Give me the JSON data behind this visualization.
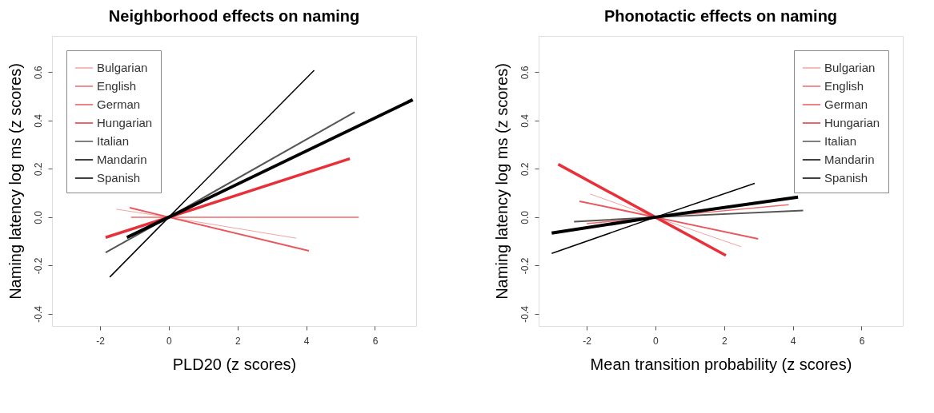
{
  "chart_data": [
    {
      "type": "line",
      "title": "Neighborhood effects on naming",
      "xlabel": "PLD20 (z scores)",
      "ylabel": "Naming latency log ms (z scores)",
      "xlim": [
        -3.4,
        7.2
      ],
      "ylim": [
        -0.45,
        0.75
      ],
      "xticks": [
        -2,
        0,
        2,
        4,
        6
      ],
      "yticks": [
        -0.4,
        -0.2,
        {
          "value": 0,
          "label": "0.0"
        },
        0.2,
        0.4,
        0.6
      ],
      "grid": false,
      "legend": "top left",
      "series": [
        {
          "name": "Bulgarian",
          "color": "#f5a3a3",
          "x": [
            -1.53,
            0,
            3.71
          ],
          "values": [
            0.033,
            0,
            -0.087
          ]
        },
        {
          "name": "English",
          "color": "#ee6a6a",
          "x": [
            -1.1,
            0,
            5.53
          ],
          "values": [
            0,
            0,
            0
          ]
        },
        {
          "name": "German",
          "color": "#e8585e",
          "x": [
            -1.14,
            0,
            4.08
          ],
          "values": [
            0.039,
            0,
            -0.139
          ]
        },
        {
          "name": "Hungarian",
          "color": "#e8303a",
          "x": [
            -1.84,
            0,
            5.27
          ],
          "values": [
            -0.084,
            0,
            0.242
          ]
        },
        {
          "name": "Italian",
          "color": "#555555",
          "x": [
            -1.84,
            0,
            5.41
          ],
          "values": [
            -0.146,
            0,
            0.435
          ]
        },
        {
          "name": "Mandarin",
          "color": "#000000",
          "x": [
            -1.72,
            0,
            4.23
          ],
          "values": [
            -0.248,
            0,
            0.608
          ]
        },
        {
          "name": "Spanish",
          "color": "#000000",
          "x": [
            -1.22,
            0,
            7.1
          ],
          "values": [
            -0.084,
            0,
            0.486
          ]
        }
      ]
    },
    {
      "type": "line",
      "title": "Phonotactic effects on naming",
      "xlabel": "Mean transition probability (z scores)",
      "ylabel": "Naming latency log ms (z scores)",
      "xlim": [
        -3.4,
        7.2
      ],
      "ylim": [
        -0.45,
        0.75
      ],
      "xticks": [
        -2,
        0,
        2,
        4,
        6
      ],
      "yticks": [
        -0.4,
        -0.2,
        {
          "value": 0,
          "label": "0.0"
        },
        0.2,
        0.4,
        0.6
      ],
      "grid": false,
      "legend": "top right",
      "series": [
        {
          "name": "Bulgarian",
          "color": "#f5a3a3",
          "x": [
            -1.9,
            0,
            2.49
          ],
          "values": [
            0.096,
            0,
            -0.122
          ]
        },
        {
          "name": "English",
          "color": "#ee6a6a",
          "x": [
            -2.0,
            0,
            3.88
          ],
          "values": [
            -0.027,
            0,
            0.052
          ]
        },
        {
          "name": "German",
          "color": "#e8585e",
          "x": [
            -2.21,
            0,
            2.99
          ],
          "values": [
            0.066,
            0,
            -0.09
          ]
        },
        {
          "name": "Hungarian",
          "color": "#e8303a",
          "x": [
            -2.83,
            0,
            2.05
          ],
          "values": [
            0.219,
            0,
            -0.158
          ]
        },
        {
          "name": "Italian",
          "color": "#555555",
          "x": [
            -2.37,
            0,
            4.3
          ],
          "values": [
            -0.019,
            0,
            0.028
          ]
        },
        {
          "name": "Mandarin",
          "color": "#000000",
          "x": [
            -3.02,
            0,
            2.89
          ],
          "values": [
            -0.15,
            0,
            0.14
          ]
        },
        {
          "name": "Spanish",
          "color": "#000000",
          "x": [
            -3.02,
            0,
            4.15
          ],
          "values": [
            -0.066,
            0,
            0.083
          ]
        }
      ]
    }
  ]
}
